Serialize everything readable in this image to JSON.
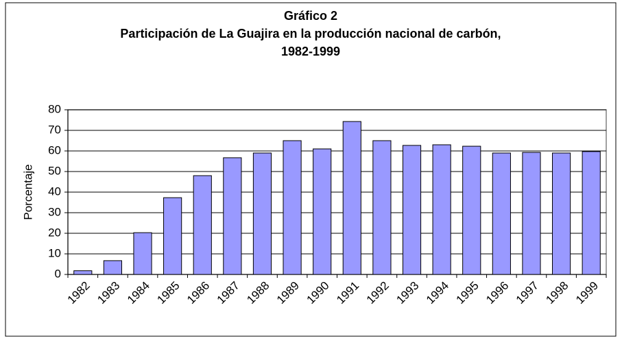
{
  "chart_data": {
    "type": "bar",
    "title_lines": [
      "Gráfico 2",
      "Participación de La Guajira en la producción nacional de carbón,",
      "1982-1999"
    ],
    "y_label": "Porcentaje",
    "categories": [
      "1982",
      "1983",
      "1984",
      "1985",
      "1986",
      "1987",
      "1988",
      "1989",
      "1990",
      "1991",
      "1992",
      "1993",
      "1994",
      "1995",
      "1996",
      "1997",
      "1998",
      "1999"
    ],
    "values": [
      1.8,
      6.7,
      20.3,
      37.3,
      48,
      56.7,
      59,
      65,
      61,
      74.3,
      65,
      62.7,
      63,
      62.3,
      59,
      59.3,
      59,
      59.7
    ],
    "color": "#9999ff",
    "ylim": [
      0,
      80
    ],
    "yticks": [
      0,
      10,
      20,
      30,
      40,
      50,
      60,
      70,
      80
    ],
    "grid": true
  }
}
